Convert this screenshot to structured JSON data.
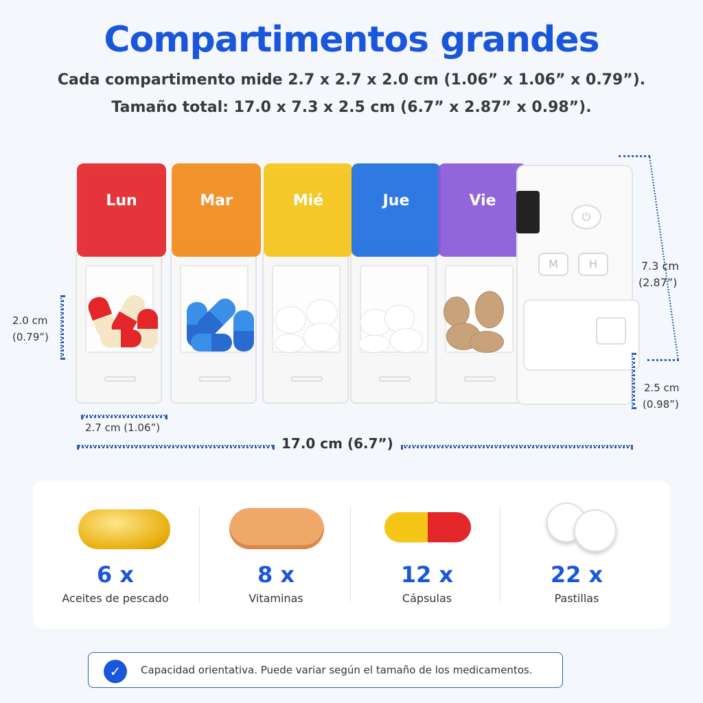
{
  "title": "Compartimentos grandes",
  "subtitle_1": "Cada compartimento mide 2.7 x 2.7 x 2.0 cm (1.06” x 1.06” x 0.79”).",
  "subtitle_2": "Tamaño total: 17.0 x 7.3 x 2.5 cm (6.7” x 2.87” x 0.98”).",
  "dimensions": {
    "height_cm": "2.0 cm",
    "height_in": "(0.79”)",
    "width": "2.7 cm (1.06”)",
    "length": "17.0 cm (6.7”)",
    "total_h_cm": "7.3 cm",
    "total_h_in": "(2.87”)",
    "depth_cm": "2.5 cm",
    "depth_in": "(0.98”)"
  },
  "days": [
    {
      "label": "Lun",
      "color": "#e3262a"
    },
    {
      "label": "Mar",
      "color": "#f28a1a"
    },
    {
      "label": "Mié",
      "color": "#f5c518"
    },
    {
      "label": "Jue",
      "color": "#1e6fe0"
    },
    {
      "label": "Vie",
      "color": "#8a5ad8"
    }
  ],
  "device_buttons": {
    "m": "M",
    "h": "H"
  },
  "capacity": [
    {
      "icon": "fish-oil-capsule-icon",
      "count": "6 x",
      "label": "Aceites de pescado"
    },
    {
      "icon": "vitamin-tablet-icon",
      "count": "8 x",
      "label": "Vitaminas"
    },
    {
      "icon": "capsule-icon",
      "count": "12 x",
      "label": "Cápsulas"
    },
    {
      "icon": "round-pill-icon",
      "count": "22 x",
      "label": "Pastillas"
    }
  ],
  "note": "Capacidad orientativa. Puede variar según el tamaño de los medicamentos.",
  "colors": {
    "accent": "#1a56db"
  }
}
